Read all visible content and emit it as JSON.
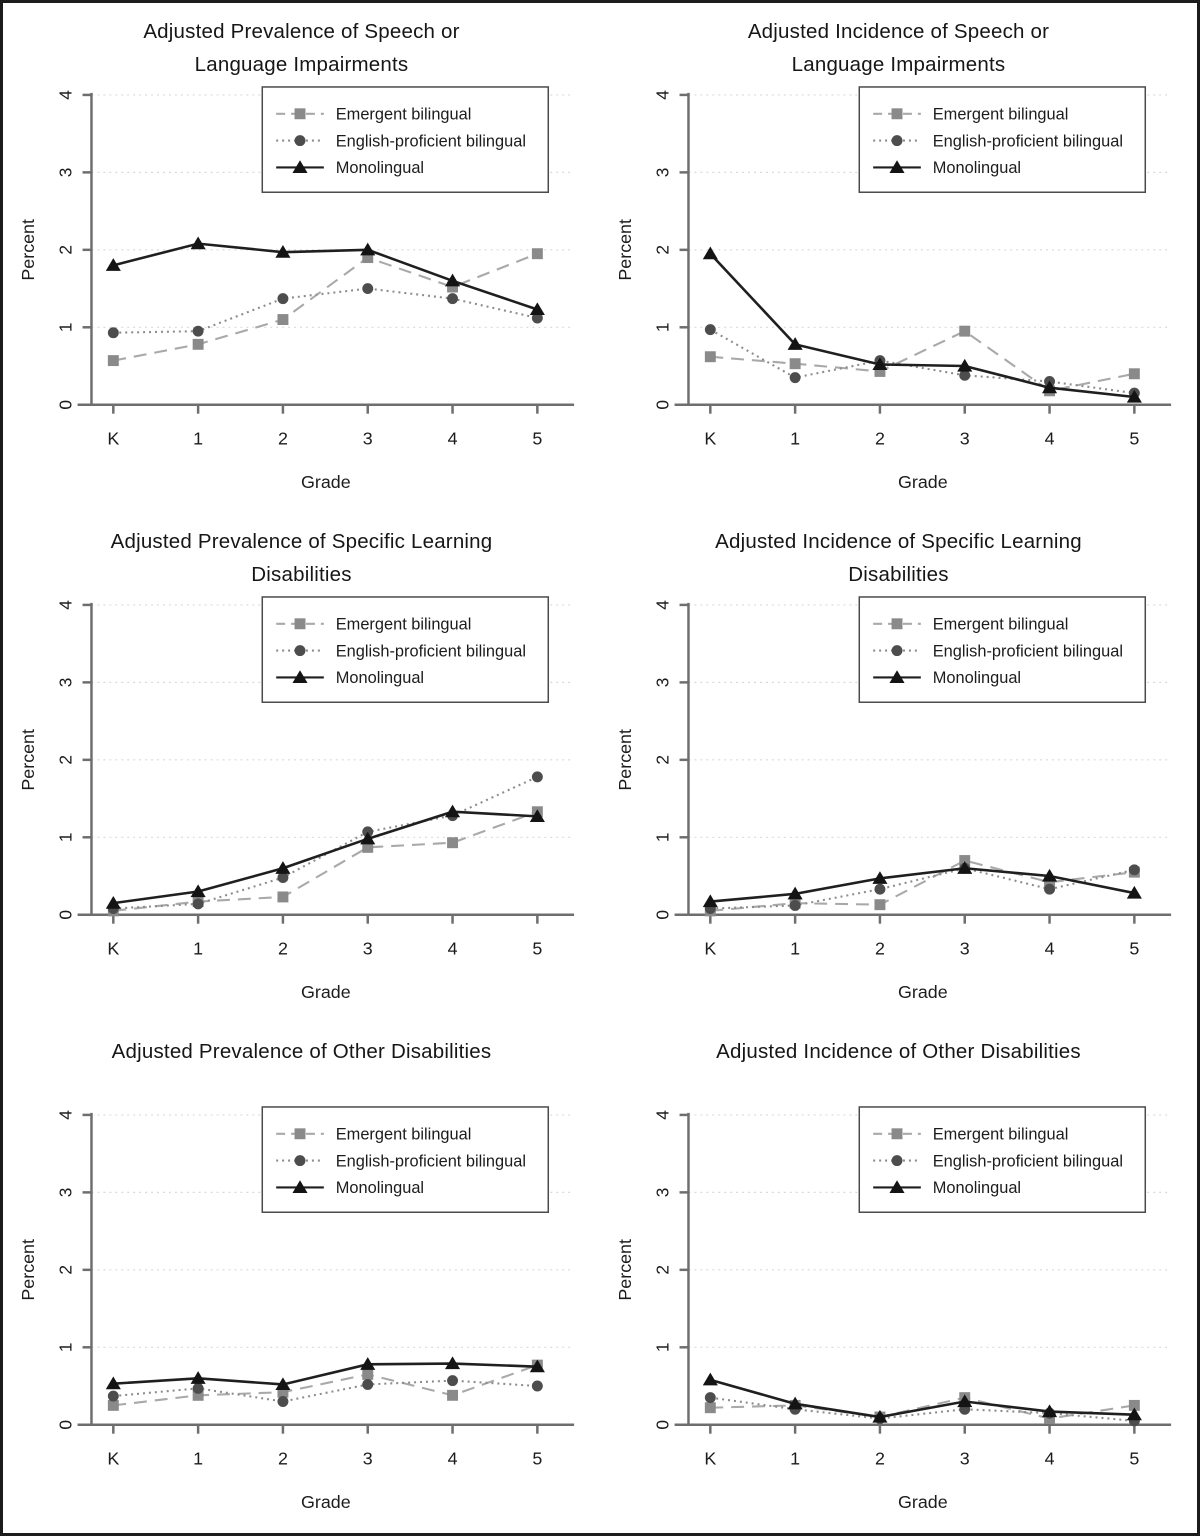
{
  "figure": {
    "background": "#ffffff",
    "frame_color": "#1c1c1c",
    "grid_color": "#d9d9d9",
    "axis_color": "#6e6e6e",
    "text_color": "#1c1c1c"
  },
  "axes": {
    "xlabel": "Grade",
    "ylabel": "Percent",
    "categories": [
      "K",
      "1",
      "2",
      "3",
      "4",
      "5"
    ],
    "yticks": [
      0,
      1,
      2,
      3,
      4
    ],
    "ylim": [
      0,
      4
    ],
    "grid": "dotted horizontal gridlines at integer ticks",
    "legend_position": "upper-right"
  },
  "legend": {
    "items": [
      {
        "label": "Emergent bilingual",
        "marker": "square",
        "marker_color": "#8a8a8a",
        "line_style": "dashed",
        "line_color": "#a9a9a9"
      },
      {
        "label": "English-proficient bilingual",
        "marker": "circle",
        "marker_color": "#4d4d4d",
        "line_style": "dotted",
        "line_color": "#8c8c8c"
      },
      {
        "label": "Monolingual",
        "marker": "triangle",
        "marker_color": "#141414",
        "line_style": "solid",
        "line_color": "#1f1f1f"
      }
    ]
  },
  "chart_data": [
    {
      "type": "line",
      "title_lines": [
        "Adjusted Prevalence of Speech or",
        "Language Impairments"
      ],
      "xlabel": "Grade",
      "ylabel": "Percent",
      "categories": [
        "K",
        "1",
        "2",
        "3",
        "4",
        "5"
      ],
      "ylim": [
        0,
        4
      ],
      "series": [
        {
          "name": "Emergent bilingual",
          "values": [
            0.57,
            0.78,
            1.1,
            1.9,
            1.52,
            1.95
          ]
        },
        {
          "name": "English-proficient bilingual",
          "values": [
            0.93,
            0.95,
            1.37,
            1.5,
            1.37,
            1.12
          ]
        },
        {
          "name": "Monolingual",
          "values": [
            1.8,
            2.08,
            1.97,
            2.0,
            1.6,
            1.23
          ]
        }
      ]
    },
    {
      "type": "line",
      "title_lines": [
        "Adjusted Incidence of Speech or",
        "Language Impairments"
      ],
      "xlabel": "Grade",
      "ylabel": "Percent",
      "categories": [
        "K",
        "1",
        "2",
        "3",
        "4",
        "5"
      ],
      "ylim": [
        0,
        4
      ],
      "series": [
        {
          "name": "Emergent bilingual",
          "values": [
            0.62,
            0.53,
            0.43,
            0.95,
            0.18,
            0.4
          ]
        },
        {
          "name": "English-proficient bilingual",
          "values": [
            0.97,
            0.35,
            0.57,
            0.38,
            0.3,
            0.15
          ]
        },
        {
          "name": "Monolingual",
          "values": [
            1.95,
            0.78,
            0.52,
            0.5,
            0.22,
            0.1
          ]
        }
      ]
    },
    {
      "type": "line",
      "title_lines": [
        "Adjusted Prevalence of Specific Learning",
        "Disabilities"
      ],
      "xlabel": "Grade",
      "ylabel": "Percent",
      "categories": [
        "K",
        "1",
        "2",
        "3",
        "4",
        "5"
      ],
      "ylim": [
        0,
        4
      ],
      "series": [
        {
          "name": "Emergent bilingual",
          "values": [
            0.05,
            0.17,
            0.23,
            0.87,
            0.93,
            1.33
          ]
        },
        {
          "name": "English-proficient bilingual",
          "values": [
            0.08,
            0.14,
            0.48,
            1.07,
            1.28,
            1.78
          ]
        },
        {
          "name": "Monolingual",
          "values": [
            0.15,
            0.3,
            0.6,
            0.98,
            1.33,
            1.27
          ]
        }
      ]
    },
    {
      "type": "line",
      "title_lines": [
        "Adjusted Incidence of Specific Learning",
        "Disabilities"
      ],
      "xlabel": "Grade",
      "ylabel": "Percent",
      "categories": [
        "K",
        "1",
        "2",
        "3",
        "4",
        "5"
      ],
      "ylim": [
        0,
        4
      ],
      "series": [
        {
          "name": "Emergent bilingual",
          "values": [
            0.05,
            0.15,
            0.13,
            0.7,
            0.42,
            0.55
          ]
        },
        {
          "name": "English-proficient bilingual",
          "values": [
            0.08,
            0.12,
            0.33,
            0.6,
            0.33,
            0.58
          ]
        },
        {
          "name": "Monolingual",
          "values": [
            0.17,
            0.27,
            0.47,
            0.6,
            0.5,
            0.28
          ]
        }
      ]
    },
    {
      "type": "line",
      "title_lines": [
        "Adjusted Prevalence of Other Disabilities"
      ],
      "xlabel": "Grade",
      "ylabel": "Percent",
      "categories": [
        "K",
        "1",
        "2",
        "3",
        "4",
        "5"
      ],
      "ylim": [
        0,
        4
      ],
      "series": [
        {
          "name": "Emergent bilingual",
          "values": [
            0.25,
            0.38,
            0.42,
            0.65,
            0.38,
            0.77
          ]
        },
        {
          "name": "English-proficient bilingual",
          "values": [
            0.37,
            0.47,
            0.3,
            0.52,
            0.57,
            0.5
          ]
        },
        {
          "name": "Monolingual",
          "values": [
            0.53,
            0.6,
            0.52,
            0.78,
            0.79,
            0.75
          ]
        }
      ]
    },
    {
      "type": "line",
      "title_lines": [
        "Adjusted Incidence of Other Disabilities"
      ],
      "xlabel": "Grade",
      "ylabel": "Percent",
      "categories": [
        "K",
        "1",
        "2",
        "3",
        "4",
        "5"
      ],
      "ylim": [
        0,
        4
      ],
      "series": [
        {
          "name": "Emergent bilingual",
          "values": [
            0.22,
            0.25,
            0.1,
            0.35,
            0.08,
            0.25
          ]
        },
        {
          "name": "English-proficient bilingual",
          "values": [
            0.35,
            0.2,
            0.08,
            0.2,
            0.15,
            0.05
          ]
        },
        {
          "name": "Monolingual",
          "values": [
            0.58,
            0.27,
            0.1,
            0.3,
            0.17,
            0.13
          ]
        }
      ]
    }
  ]
}
